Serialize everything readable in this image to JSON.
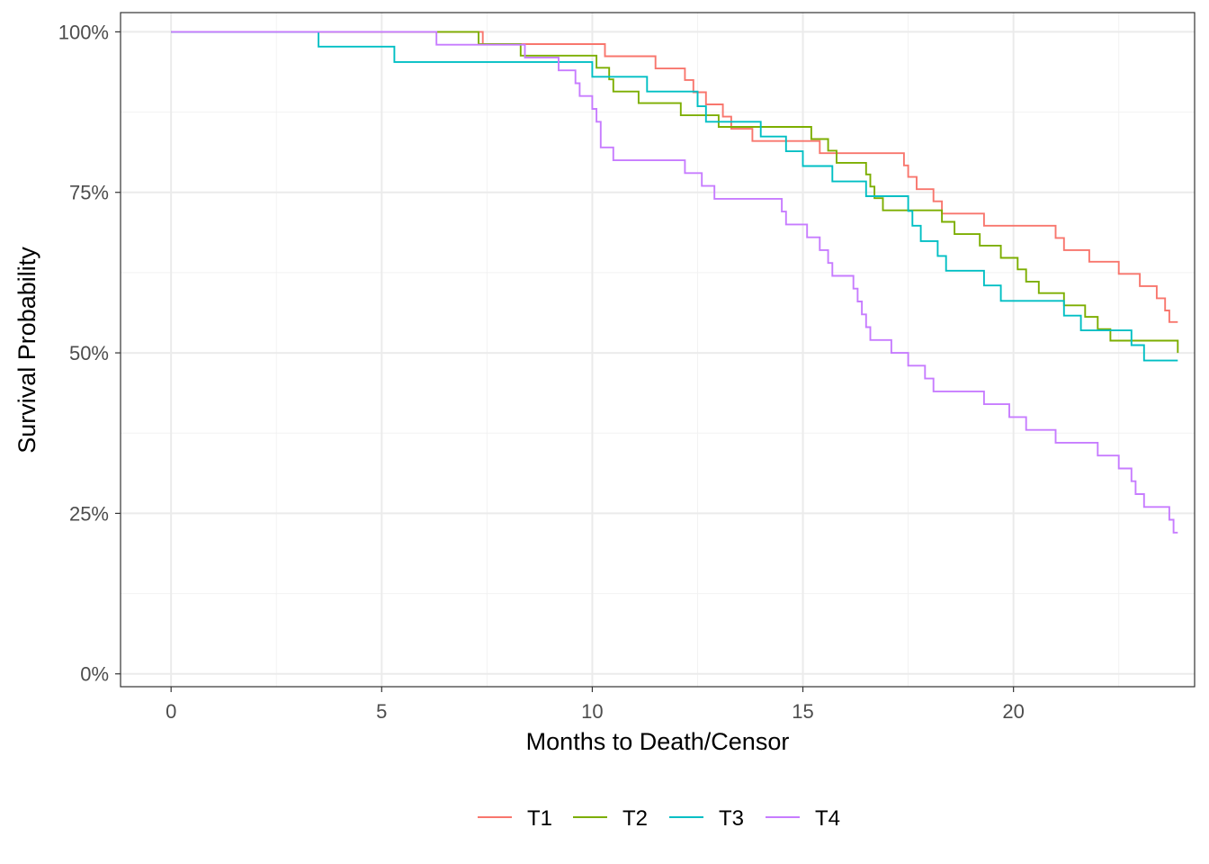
{
  "chart_data": {
    "type": "line",
    "subtype": "step (Kaplan-Meier survival curves)",
    "title": "",
    "xlabel": "Months to Death/Censor",
    "ylabel": "Survival Probability",
    "xlim": [
      -1.2,
      24.3
    ],
    "ylim": [
      -0.02,
      1.03
    ],
    "x_ticks": [
      0,
      5,
      10,
      15,
      20
    ],
    "x_tick_labels": [
      "0",
      "5",
      "10",
      "15",
      "20"
    ],
    "y_ticks": [
      0,
      0.25,
      0.5,
      0.75,
      1.0
    ],
    "y_tick_labels": [
      "0%",
      "25%",
      "50%",
      "75%",
      "100%"
    ],
    "grid": true,
    "legend_position": "bottom",
    "series": [
      {
        "name": "T1",
        "color": "#F8766D",
        "steps": [
          [
            0,
            1.0
          ],
          [
            7.4,
            0.981
          ],
          [
            10.3,
            0.962
          ],
          [
            11.5,
            0.943
          ],
          [
            12.2,
            0.925
          ],
          [
            12.4,
            0.906
          ],
          [
            12.7,
            0.887
          ],
          [
            13.1,
            0.868
          ],
          [
            13.3,
            0.849
          ],
          [
            13.8,
            0.83
          ],
          [
            15.4,
            0.811
          ],
          [
            17.4,
            0.792
          ],
          [
            17.5,
            0.774
          ],
          [
            17.7,
            0.755
          ],
          [
            18.1,
            0.736
          ],
          [
            18.3,
            0.717
          ],
          [
            19.3,
            0.698
          ],
          [
            21.0,
            0.679
          ],
          [
            21.2,
            0.66
          ],
          [
            21.8,
            0.642
          ],
          [
            22.5,
            0.623
          ],
          [
            23.0,
            0.604
          ],
          [
            23.4,
            0.585
          ],
          [
            23.6,
            0.566
          ],
          [
            23.7,
            0.548
          ]
        ],
        "end_x": 23.9
      },
      {
        "name": "T2",
        "color": "#7CAE00",
        "steps": [
          [
            0,
            1.0
          ],
          [
            7.3,
            0.981
          ],
          [
            8.3,
            0.963
          ],
          [
            10.1,
            0.944
          ],
          [
            10.4,
            0.926
          ],
          [
            10.5,
            0.907
          ],
          [
            11.1,
            0.889
          ],
          [
            12.1,
            0.87
          ],
          [
            13.0,
            0.852
          ],
          [
            15.2,
            0.833
          ],
          [
            15.6,
            0.815
          ],
          [
            15.8,
            0.796
          ],
          [
            16.5,
            0.778
          ],
          [
            16.6,
            0.759
          ],
          [
            16.7,
            0.741
          ],
          [
            16.9,
            0.722
          ],
          [
            18.3,
            0.704
          ],
          [
            18.6,
            0.685
          ],
          [
            19.2,
            0.667
          ],
          [
            19.7,
            0.648
          ],
          [
            20.1,
            0.63
          ],
          [
            20.3,
            0.611
          ],
          [
            20.6,
            0.593
          ],
          [
            21.2,
            0.574
          ],
          [
            21.7,
            0.556
          ],
          [
            22.0,
            0.537
          ],
          [
            22.3,
            0.519
          ],
          [
            23.9,
            0.5
          ]
        ],
        "end_x": 23.9
      },
      {
        "name": "T3",
        "color": "#00BFC4",
        "steps": [
          [
            0,
            1.0
          ],
          [
            3.5,
            0.977
          ],
          [
            5.3,
            0.953
          ],
          [
            10.0,
            0.93
          ],
          [
            11.3,
            0.907
          ],
          [
            12.5,
            0.884
          ],
          [
            12.7,
            0.86
          ],
          [
            14.0,
            0.837
          ],
          [
            14.6,
            0.814
          ],
          [
            15.0,
            0.791
          ],
          [
            15.7,
            0.767
          ],
          [
            16.5,
            0.744
          ],
          [
            17.5,
            0.721
          ],
          [
            17.6,
            0.698
          ],
          [
            17.8,
            0.674
          ],
          [
            18.2,
            0.651
          ],
          [
            18.4,
            0.628
          ],
          [
            19.3,
            0.605
          ],
          [
            19.7,
            0.581
          ],
          [
            21.2,
            0.558
          ],
          [
            21.6,
            0.535
          ],
          [
            22.8,
            0.512
          ],
          [
            23.1,
            0.488
          ]
        ],
        "end_x": 23.9
      },
      {
        "name": "T4",
        "color": "#C77CFF",
        "steps": [
          [
            0,
            1.0
          ],
          [
            6.3,
            0.98
          ],
          [
            8.4,
            0.96
          ],
          [
            9.2,
            0.94
          ],
          [
            9.6,
            0.92
          ],
          [
            9.7,
            0.9
          ],
          [
            10.0,
            0.88
          ],
          [
            10.1,
            0.86
          ],
          [
            10.2,
            0.84
          ],
          [
            10.2,
            0.82
          ],
          [
            10.5,
            0.8
          ],
          [
            12.2,
            0.78
          ],
          [
            12.6,
            0.76
          ],
          [
            12.9,
            0.74
          ],
          [
            14.5,
            0.72
          ],
          [
            14.6,
            0.7
          ],
          [
            15.1,
            0.68
          ],
          [
            15.4,
            0.66
          ],
          [
            15.6,
            0.64
          ],
          [
            15.7,
            0.62
          ],
          [
            16.2,
            0.6
          ],
          [
            16.3,
            0.58
          ],
          [
            16.4,
            0.56
          ],
          [
            16.5,
            0.54
          ],
          [
            16.6,
            0.52
          ],
          [
            17.1,
            0.5
          ],
          [
            17.5,
            0.48
          ],
          [
            17.9,
            0.46
          ],
          [
            18.1,
            0.44
          ],
          [
            19.3,
            0.42
          ],
          [
            19.9,
            0.4
          ],
          [
            20.3,
            0.38
          ],
          [
            21.0,
            0.36
          ],
          [
            22.0,
            0.34
          ],
          [
            22.5,
            0.32
          ],
          [
            22.8,
            0.3
          ],
          [
            22.9,
            0.28
          ],
          [
            23.1,
            0.26
          ],
          [
            23.7,
            0.24
          ],
          [
            23.8,
            0.22
          ]
        ],
        "end_x": 23.9
      }
    ]
  }
}
